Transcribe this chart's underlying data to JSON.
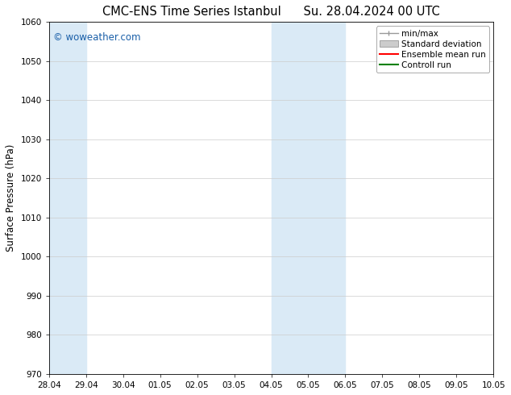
{
  "title_left": "CMC-ENS Time Series Istanbul",
  "title_right": "Su. 28.04.2024 00 UTC",
  "ylabel": "Surface Pressure (hPa)",
  "ylim": [
    970,
    1060
  ],
  "yticks": [
    970,
    980,
    990,
    1000,
    1010,
    1020,
    1030,
    1040,
    1050,
    1060
  ],
  "xtick_labels": [
    "28.04",
    "29.04",
    "30.04",
    "01.05",
    "02.05",
    "03.05",
    "04.05",
    "05.05",
    "06.05",
    "07.05",
    "08.05",
    "09.05",
    "10.05"
  ],
  "xtick_positions": [
    0,
    1,
    2,
    3,
    4,
    5,
    6,
    7,
    8,
    9,
    10,
    11,
    12
  ],
  "shaded_bands": [
    {
      "x_start": 0,
      "x_end": 1,
      "color": "#daeaf6"
    },
    {
      "x_start": 6,
      "x_end": 8,
      "color": "#daeaf6"
    }
  ],
  "watermark_text": "© woweather.com",
  "watermark_color": "#1a5fa8",
  "legend_entries": [
    {
      "label": "min/max",
      "color": "#999999",
      "style": "line_with_bars"
    },
    {
      "label": "Standard deviation",
      "color": "#cccccc",
      "style": "rect"
    },
    {
      "label": "Ensemble mean run",
      "color": "red",
      "style": "line"
    },
    {
      "label": "Controll run",
      "color": "green",
      "style": "line"
    }
  ],
  "bg_color": "#ffffff",
  "plot_bg_color": "#ffffff",
  "grid_color": "#cccccc",
  "title_fontsize": 10.5,
  "tick_fontsize": 7.5,
  "ylabel_fontsize": 8.5,
  "legend_fontsize": 7.5,
  "watermark_fontsize": 8.5
}
